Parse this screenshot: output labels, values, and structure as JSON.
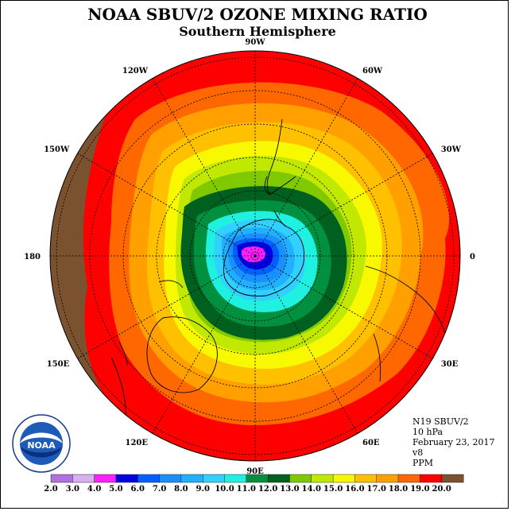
{
  "header": {
    "title": "NOAA SBUV/2 OZONE MIXING RATIO",
    "subtitle": "Southern Hemisphere"
  },
  "info": {
    "satellite": "N19 SBUV/2",
    "level": "10 hPa",
    "date": "February 23, 2017",
    "version": "v8",
    "units": "PPM"
  },
  "map": {
    "projection": "polar-stereographic-south",
    "longitude_labels": [
      "90W",
      "60W",
      "30W",
      "0",
      "30E",
      "60E",
      "90E",
      "120E",
      "150E",
      "180",
      "150W",
      "120W"
    ],
    "longitude_degrees": [
      -90,
      -60,
      -30,
      0,
      30,
      60,
      90,
      120,
      150,
      180,
      -150,
      -120
    ],
    "contour_levels_ppm": [
      2.0,
      3.0,
      4.0,
      5.0,
      6.0,
      7.0,
      8.0,
      9.0,
      10.0,
      11.0,
      12.0,
      13.0,
      14.0,
      15.0,
      16.0,
      17.0,
      18.0,
      19.0,
      20.0
    ],
    "minimum_region": "near South Pole (< 5.0 PPM)",
    "maximum_region": "outer edge (> 19.0 PPM)"
  },
  "legend": {
    "labels": [
      "2.0",
      "3.0",
      "4.0",
      "5.0",
      "6.0",
      "7.0",
      "8.0",
      "9.0",
      "10.0",
      "11.0",
      "12.0",
      "13.0",
      "14.0",
      "15.0",
      "16.0",
      "17.0",
      "18.0",
      "19.0",
      "20.0"
    ],
    "colors": [
      "#b070e0",
      "#d8b0f0",
      "#ff20ff",
      "#0000e0",
      "#0060ff",
      "#1890ff",
      "#20b0ff",
      "#30d0ff",
      "#20f0e0",
      "#009040",
      "#006020",
      "#80c800",
      "#c0e800",
      "#f8f800",
      "#ffc000",
      "#ffa000",
      "#ff6800",
      "#ff0000",
      "#7a5230"
    ]
  },
  "logo": {
    "text": "NOAA",
    "ring_text": "NATIONAL OCEANIC AND ATMOSPHERIC ADMINISTRATION • U.S. DEPARTMENT OF COMMERCE"
  }
}
